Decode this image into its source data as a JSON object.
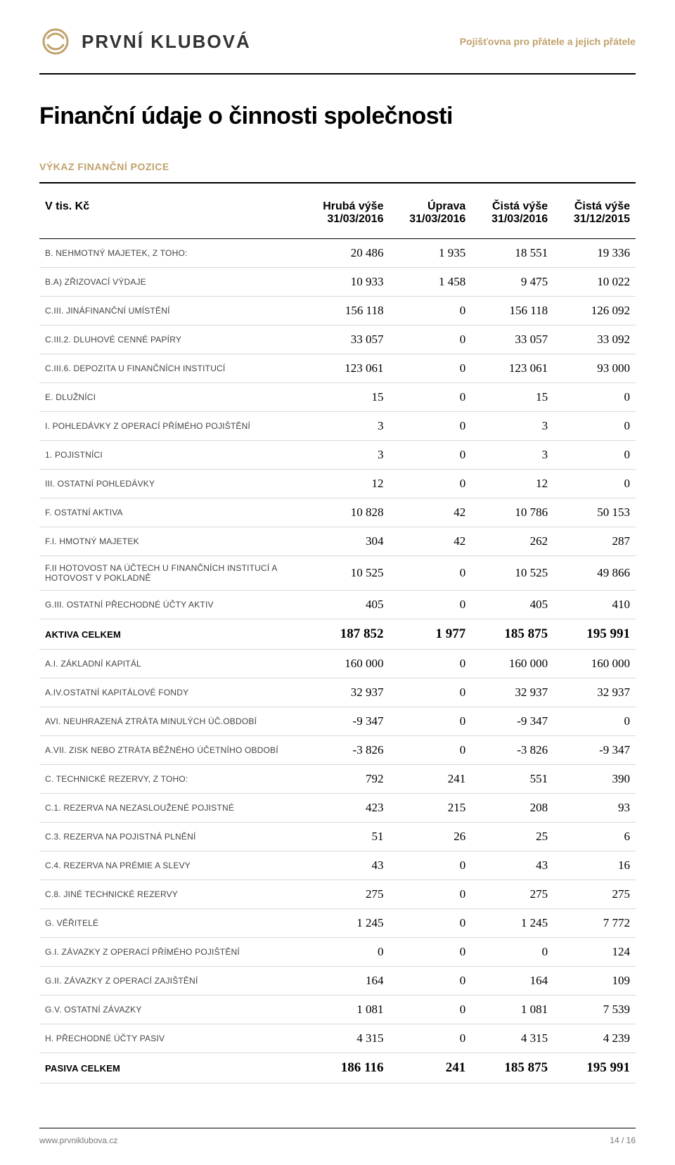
{
  "brand": {
    "logo_text": "PRVNÍ KLUBOVÁ",
    "tagline": "Pojišťovna pro přátele a jejich přátele",
    "logo_color": "#c0a16b"
  },
  "page": {
    "title": "Finanční údaje o činnosti společnosti",
    "section_label": "VÝKAZ FINANČNÍ POZICE"
  },
  "table": {
    "unit_label": "V tis. Kč",
    "columns": [
      {
        "top": "Hrubá výše",
        "sub": "31/03/2016"
      },
      {
        "top": "Úprava",
        "sub": "31/03/2016"
      },
      {
        "top": "Čistá výše",
        "sub": "31/03/2016"
      },
      {
        "top": "Čistá výše",
        "sub": "31/12/2015"
      }
    ],
    "rows": [
      {
        "label": "B. NEHMOTNÝ MAJETEK, Z TOHO:",
        "v": [
          "20 486",
          "1 935",
          "18 551",
          "19 336"
        ]
      },
      {
        "label": "B.A) ZŘIZOVACÍ VÝDAJE",
        "v": [
          "10 933",
          "1 458",
          "9 475",
          "10 022"
        ]
      },
      {
        "label": "C.III. JINÁFINANČNÍ UMÍSTĚNÍ",
        "v": [
          "156 118",
          "0",
          "156 118",
          "126 092"
        ]
      },
      {
        "label": "C.III.2. DLUHOVÉ CENNÉ PAPÍRY",
        "v": [
          "33 057",
          "0",
          "33 057",
          "33 092"
        ]
      },
      {
        "label": "C.III.6. DEPOZITA U FINANČNÍCH INSTITUCÍ",
        "v": [
          "123 061",
          "0",
          "123 061",
          "93 000"
        ]
      },
      {
        "label": "E. DLUŽNÍCI",
        "v": [
          "15",
          "0",
          "15",
          "0"
        ]
      },
      {
        "label": "I. POHLEDÁVKY Z OPERACÍ PŘÍMÉHO POJIŠTĚNÍ",
        "v": [
          "3",
          "0",
          "3",
          "0"
        ]
      },
      {
        "label": "1. POJISTNÍCI",
        "v": [
          "3",
          "0",
          "3",
          "0"
        ]
      },
      {
        "label": "III. OSTATNÍ POHLEDÁVKY",
        "v": [
          "12",
          "0",
          "12",
          "0"
        ]
      },
      {
        "label": "F. OSTATNÍ AKTIVA",
        "v": [
          "10 828",
          "42",
          "10 786",
          "50 153"
        ]
      },
      {
        "label": "F.I. HMOTNÝ MAJETEK",
        "v": [
          "304",
          "42",
          "262",
          "287"
        ]
      },
      {
        "label": "F.II HOTOVOST NA ÚČTECH U FINANČNÍCH INSTITUCÍ A HOTOVOST V POKLADNĚ",
        "v": [
          "10 525",
          "0",
          "10 525",
          "49 866"
        ]
      },
      {
        "label": "G.III. OSTATNÍ PŘECHODNÉ ÚČTY AKTIV",
        "v": [
          "405",
          "0",
          "405",
          "410"
        ]
      },
      {
        "label": "AKTIVA CELKEM",
        "strong": true,
        "v": [
          "187 852",
          "1 977",
          "185 875",
          "195 991"
        ]
      },
      {
        "label": "A.I. ZÁKLADNÍ KAPITÁL",
        "v": [
          "160 000",
          "0",
          "160 000",
          "160 000"
        ]
      },
      {
        "label": "A.IV.OSTATNÍ KAPITÁLOVÉ FONDY",
        "v": [
          "32 937",
          "0",
          "32 937",
          "32 937"
        ]
      },
      {
        "label": "AVI. NEUHRAZENÁ ZTRÁTA MINULÝCH ÚČ.OBDOBÍ",
        "v": [
          "-9 347",
          "0",
          "-9 347",
          "0"
        ]
      },
      {
        "label": "A.VII. ZISK NEBO ZTRÁTA BĚŽNÉHO ÚČETNÍHO OBDOBÍ",
        "v": [
          "-3 826",
          "0",
          "-3 826",
          "-9 347"
        ]
      },
      {
        "label": "C. TECHNICKÉ REZERVY, Z TOHO:",
        "v": [
          "792",
          "241",
          "551",
          "390"
        ]
      },
      {
        "label": "C.1. REZERVA NA NEZASLOUŽENÉ POJISTNÉ",
        "v": [
          "423",
          "215",
          "208",
          "93"
        ]
      },
      {
        "label": "C.3. REZERVA NA POJISTNÁ PLNĚNÍ",
        "v": [
          "51",
          "26",
          "25",
          "6"
        ]
      },
      {
        "label": "C.4. REZERVA NA PRÉMIE A SLEVY",
        "v": [
          "43",
          "0",
          "43",
          "16"
        ]
      },
      {
        "label": "C.8. JINÉ TECHNICKÉ REZERVY",
        "v": [
          "275",
          "0",
          "275",
          "275"
        ]
      },
      {
        "label": "G. VĚŘITELÉ",
        "v": [
          "1 245",
          "0",
          "1 245",
          "7 772"
        ]
      },
      {
        "label": "G.I. ZÁVAZKY Z OPERACÍ PŘÍMÉHO POJIŠTĚNÍ",
        "v": [
          "0",
          "0",
          "0",
          "124"
        ]
      },
      {
        "label": "G.II. ZÁVAZKY Z OPERACÍ ZAJIŠTĚNÍ",
        "v": [
          "164",
          "0",
          "164",
          "109"
        ]
      },
      {
        "label": "G.V. OSTATNÍ ZÁVAZKY",
        "v": [
          "1 081",
          "0",
          "1 081",
          "7 539"
        ]
      },
      {
        "label": "H. PŘECHODNÉ ÚČTY PASIV",
        "v": [
          "4 315",
          "0",
          "4 315",
          "4 239"
        ]
      },
      {
        "label": "PASIVA CELKEM",
        "strong": true,
        "v": [
          "186 116",
          "241",
          "185 875",
          "195 991"
        ]
      }
    ]
  },
  "footer": {
    "url": "www.prvniklubova.cz",
    "page_no": "14 / 16"
  },
  "style": {
    "accent_color": "#c0a16b",
    "text_color": "#000000",
    "muted_text": "#777777",
    "row_border": "#d9d9d9",
    "background": "#ffffff",
    "title_fontsize": 34,
    "body_fontsize": 14,
    "num_fontsize": 17,
    "num_fontsize_strong": 19
  }
}
